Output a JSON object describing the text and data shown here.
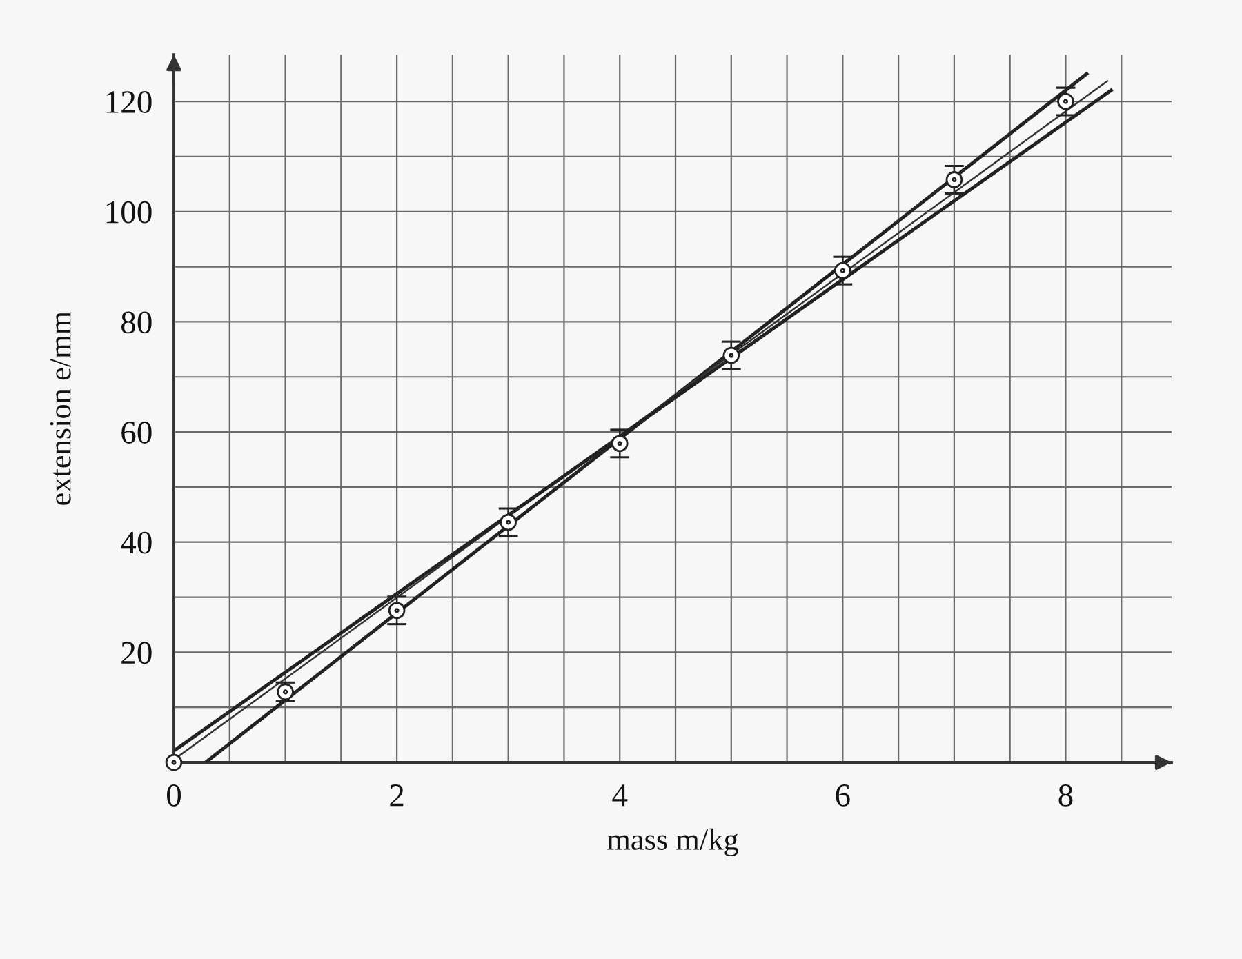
{
  "chart_data": {
    "type": "scatter",
    "xlabel": "mass m/kg",
    "ylabel": "extension e/mm",
    "xlim": [
      0,
      8.95
    ],
    "ylim": [
      0,
      128.5
    ],
    "xticks": [
      0,
      {
        "value": 0.5,
        "label": null
      },
      {
        "value": 1,
        "label": null
      },
      {
        "value": 1.5,
        "label": null
      },
      2,
      {
        "value": 2.5,
        "label": null
      },
      {
        "value": 3,
        "label": null
      },
      {
        "value": 3.5,
        "label": null
      },
      4,
      {
        "value": 4.5,
        "label": null
      },
      {
        "value": 5,
        "label": null
      },
      {
        "value": 5.5,
        "label": null
      },
      6,
      {
        "value": 6.5,
        "label": null
      },
      {
        "value": 7,
        "label": null
      },
      {
        "value": 7.5,
        "label": null
      },
      8,
      {
        "value": 8.5,
        "label": null
      }
    ],
    "yticks": [
      {
        "value": 10,
        "label": null
      },
      20,
      {
        "value": 30,
        "label": null
      },
      40,
      {
        "value": 50,
        "label": null
      },
      60,
      {
        "value": 70,
        "label": null
      },
      80,
      {
        "value": 90,
        "label": null
      },
      100,
      {
        "value": 110,
        "label": null
      },
      120
    ],
    "grid": true,
    "series": [
      {
        "x": [
          0,
          1,
          2,
          3,
          4,
          5,
          6,
          7,
          8
        ],
        "values": [
          0,
          12.8,
          27.6,
          43.6,
          57.9,
          73.9,
          89.3,
          105.8,
          120
        ],
        "errors": [
          null,
          1.7,
          2.5,
          2.5,
          2.5,
          2.5,
          2.5,
          2.5,
          2.5
        ],
        "color": "#222222",
        "marker": "circle"
      },
      {
        "type": "line",
        "x": [
          0.285,
          8.2
        ],
        "values": [
          0,
          125.2
        ],
        "color": "#222222"
      },
      {
        "type": "line",
        "x": [
          0,
          8.38
        ],
        "values": [
          0.5,
          123.8
        ],
        "color": "#333333"
      },
      {
        "type": "line",
        "x": [
          0,
          8.42
        ],
        "values": [
          2.1,
          122.2
        ],
        "color": "#222222"
      }
    ]
  }
}
